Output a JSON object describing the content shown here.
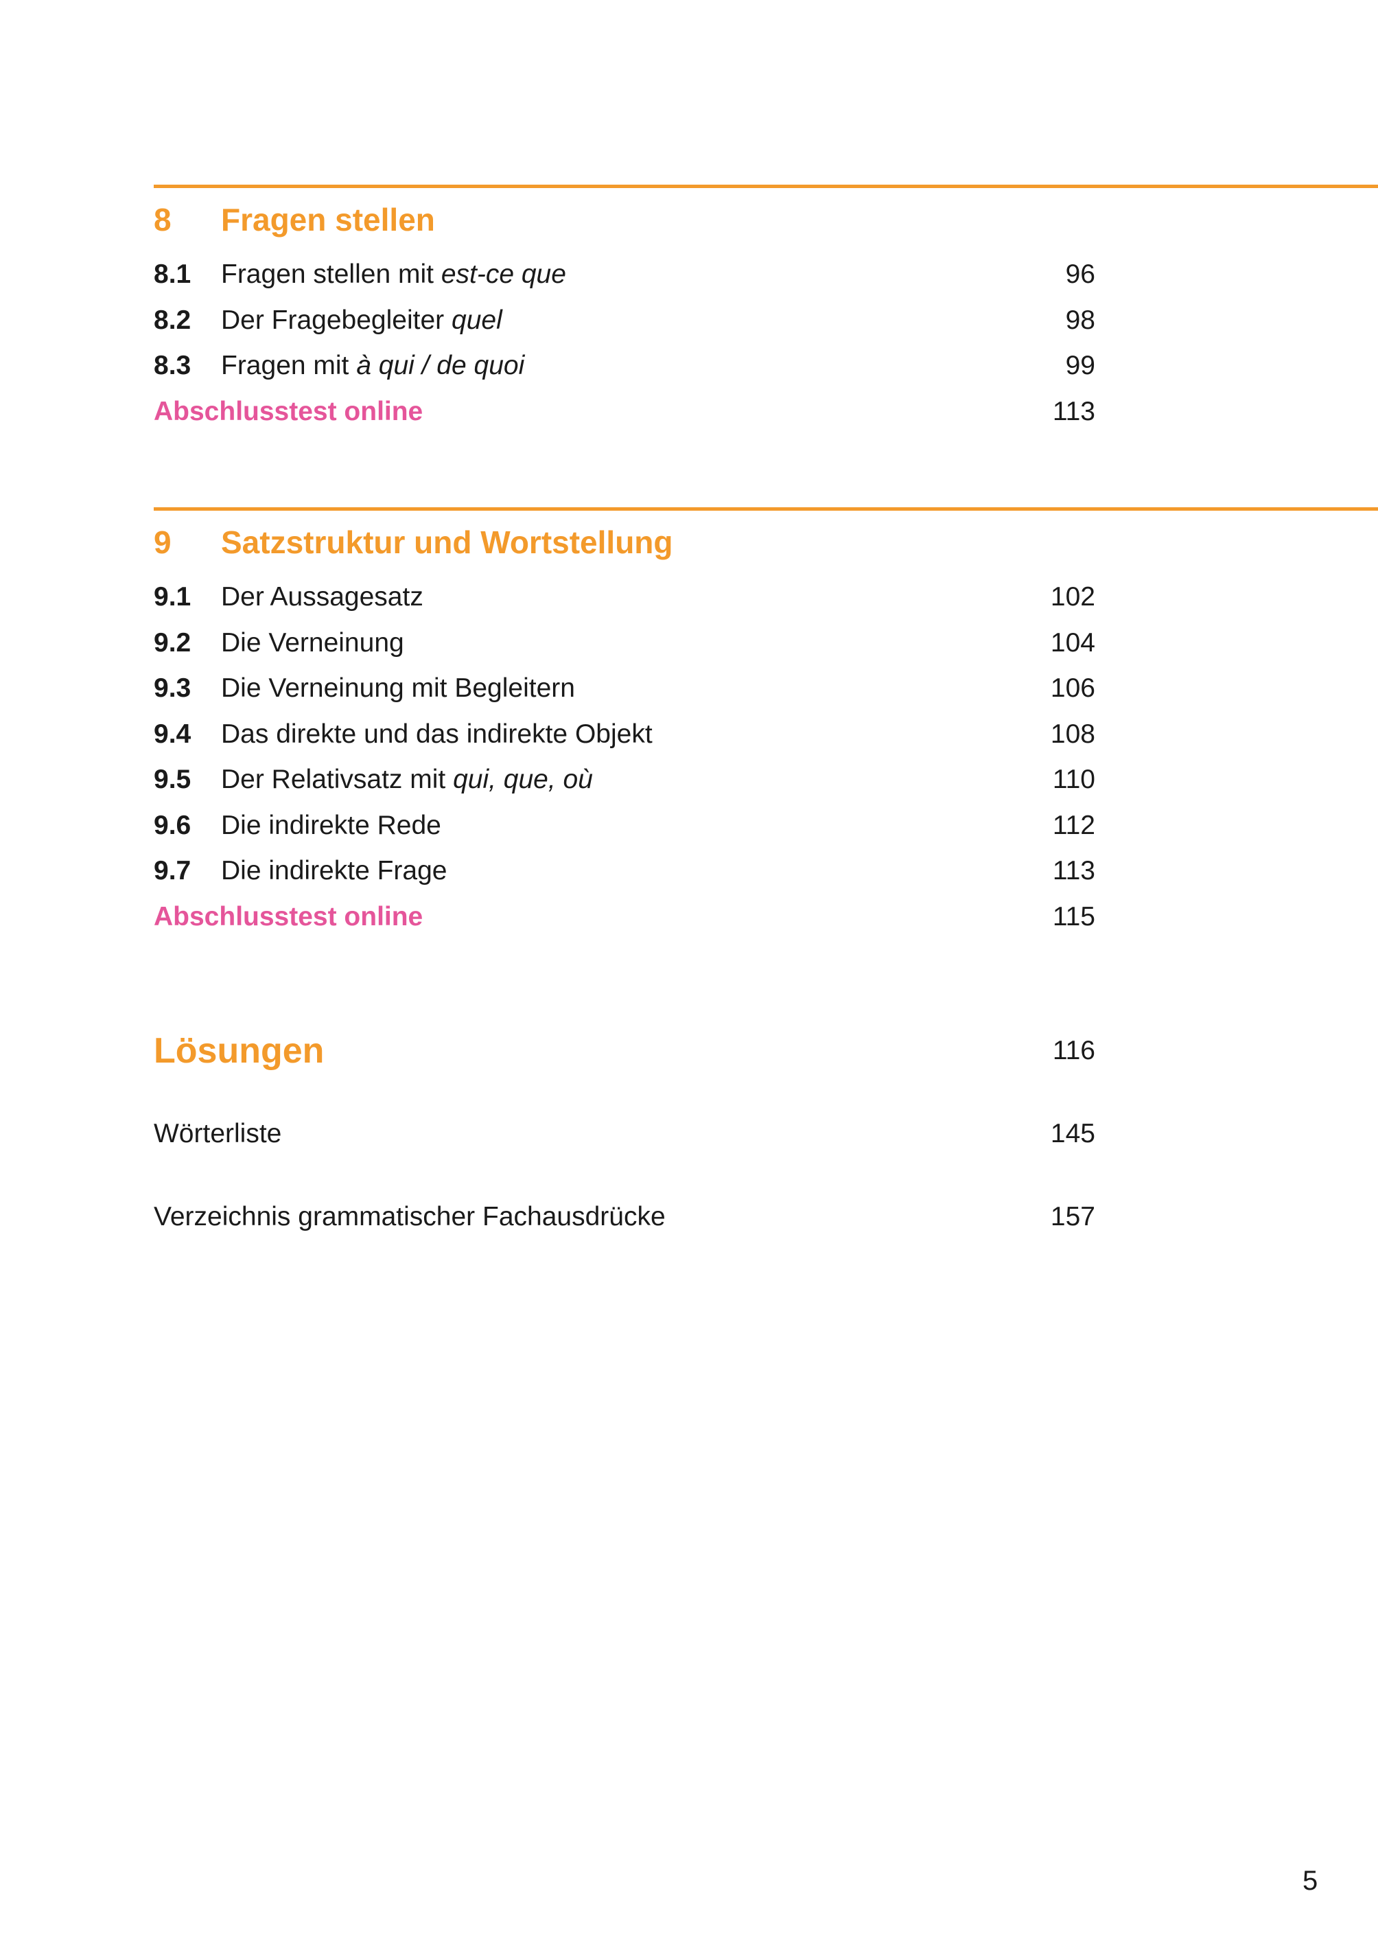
{
  "colors": {
    "accent": "#f39a2b",
    "test_link": "#e5559a",
    "text": "#1a1a1a"
  },
  "chapters": [
    {
      "number": "8",
      "title": "Fragen stellen",
      "items": [
        {
          "number": "8.1",
          "text": "Fragen stellen mit ",
          "italic": "est-ce que",
          "page": "96"
        },
        {
          "number": "8.2",
          "text": "Der Fragebegleiter ",
          "italic": "quel",
          "page": "98"
        },
        {
          "number": "8.3",
          "text": "Fragen mit ",
          "italic": "à qui / de quoi",
          "page": "99"
        }
      ],
      "test": {
        "label": "Abschlusstest online",
        "page": "113"
      }
    },
    {
      "number": "9",
      "title": "Satzstruktur und Wortstellung",
      "items": [
        {
          "number": "9.1",
          "text": "Der Aussagesatz",
          "italic": "",
          "page": "102"
        },
        {
          "number": "9.2",
          "text": "Die Verneinung",
          "italic": "",
          "page": "104"
        },
        {
          "number": "9.3",
          "text": "Die Verneinung mit Begleitern",
          "italic": "",
          "page": "106"
        },
        {
          "number": "9.4",
          "text": "Das direkte und das indirekte Objekt",
          "italic": "",
          "page": "108"
        },
        {
          "number": "9.5",
          "text": "Der Relativsatz mit ",
          "italic": "qui, que, où",
          "page": "110"
        },
        {
          "number": "9.6",
          "text": "Die indirekte Rede",
          "italic": "",
          "page": "112"
        },
        {
          "number": "9.7",
          "text": "Die indirekte Frage",
          "italic": "",
          "page": "113"
        }
      ],
      "test": {
        "label": "Abschlusstest online",
        "page": "115"
      }
    }
  ],
  "appendix": {
    "solutions": {
      "label": "Lösungen",
      "page": "116"
    },
    "entries": [
      {
        "label": "Wörterliste",
        "page": "145"
      },
      {
        "label": "Verzeichnis grammatischer Fachausdrücke",
        "page": "157"
      }
    ]
  },
  "page_number": "5"
}
